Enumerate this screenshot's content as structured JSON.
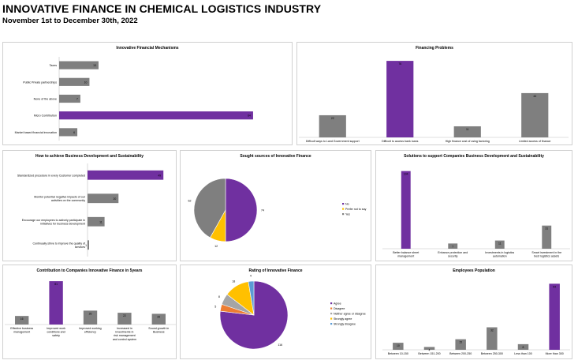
{
  "header": {
    "title": "INNOVATIVE FINANCE IN CHEMICAL LOGISTICS INDUSTRY",
    "subtitle": "November 1st to December 30th, 2022"
  },
  "colors": {
    "gray": "#7f7f7f",
    "purple": "#7030a0",
    "yellow": "#ffc000",
    "orange": "#ed7d31",
    "lightgray": "#a5a5a5",
    "blue": "#5b9bd5"
  },
  "chart_data": [
    {
      "id": "mechanisms",
      "type": "bar",
      "orientation": "horizontal",
      "title": "Innovative Financial Mechanisms",
      "categories": [
        "Taxes",
        "Public Private partnerships",
        "None of the above",
        "Micro Contribution",
        "Market based financial innovation"
      ],
      "values": [
        13,
        10,
        7,
        64,
        6
      ],
      "highlight": [
        3
      ],
      "xlim": [
        0,
        70
      ]
    },
    {
      "id": "problems",
      "type": "bar",
      "orientation": "vertical",
      "title": "Financing Problems",
      "categories": [
        "Difficult ways to Land Government support",
        "Difficult to access bank loans",
        "High finance cost of using factoring",
        "Limited access of finance"
      ],
      "values": [
        22,
        76,
        11,
        44
      ],
      "highlight": [
        1
      ],
      "ylim": [
        0,
        80
      ]
    },
    {
      "id": "achieve",
      "type": "bar",
      "orientation": "horizontal",
      "title": "How to achieve Business Development and Sustainability",
      "categories": [
        "Standardized procedure in every Customer completed",
        "Monitor potential negative impacts of our activities on the community",
        "Encourage our employees to actively participate in initiatives for business development",
        "Continually strive to improve the quality of services"
      ],
      "values": [
        49,
        20,
        11,
        1
      ],
      "highlight": [
        0
      ],
      "xlim": [
        0,
        55
      ]
    },
    {
      "id": "sought",
      "type": "pie",
      "title": "Sought sources of Innovative Finance",
      "labels": [
        "No",
        "Prefer not to say",
        "Yes"
      ],
      "values": [
        74,
        12,
        62
      ],
      "colors": [
        "#7030a0",
        "#ffc000",
        "#7f7f7f"
      ],
      "legend": "right"
    },
    {
      "id": "solutions",
      "type": "bar",
      "orientation": "vertical",
      "title": "Solutions to support Companies Business Development and Sustainability",
      "categories": [
        "Better balance sheet management",
        "Enhance protection and security",
        "Investments in logistics automation",
        "Smart investment in the best logistics assets"
      ],
      "values": [
        104,
        7,
        11,
        31
      ],
      "highlight": [
        0
      ],
      "ylim": [
        0,
        110
      ]
    },
    {
      "id": "contribution",
      "type": "bar",
      "orientation": "vertical",
      "title": "Contribution to Companies Innovative Finance in 5years",
      "categories": [
        "Effective business management",
        "Improved work conditions and safety",
        "Improved working efficiency",
        "Increased in investments in risk management and control system",
        "Sound growth in Business"
      ],
      "values": [
        16,
        81,
        26,
        22,
        20
      ],
      "highlight": [
        1
      ],
      "ylim": [
        0,
        90
      ]
    },
    {
      "id": "rating",
      "type": "pie",
      "title": "Rating of Innovative Finance",
      "labels": [
        "Agree",
        "Disagree",
        "Neither agree or disagree",
        "Strongly agree",
        "Strongly disagree"
      ],
      "values": [
        116,
        5,
        8,
        18,
        4
      ],
      "colors": [
        "#7030a0",
        "#ed7d31",
        "#a5a5a5",
        "#ffc000",
        "#5b9bd5"
      ],
      "legend": "right"
    },
    {
      "id": "employees",
      "type": "bar",
      "orientation": "vertical",
      "title": "Employees Population",
      "categories": [
        "Between 10-150",
        "Between 151-200",
        "Between 200-250",
        "Between 250-300",
        "Less than 100",
        "More than 300"
      ],
      "values": [
        10,
        4,
        15,
        32,
        8,
        94
      ],
      "highlight": [
        5
      ],
      "ylim": [
        0,
        100
      ]
    }
  ]
}
